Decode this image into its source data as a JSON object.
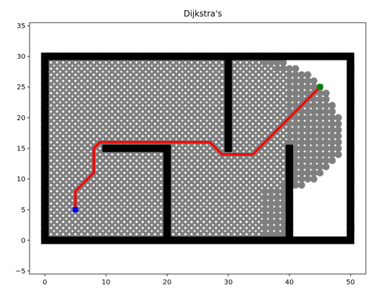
{
  "chart_data": {
    "type": "scatter",
    "title": "Dijkstra's",
    "xlabel": "",
    "ylabel": "",
    "xlim": [
      -2.5,
      52.5
    ],
    "ylim": [
      -5.5,
      35.5
    ],
    "xticks": [
      0,
      10,
      20,
      30,
      40,
      50
    ],
    "yticks": [
      -5,
      0,
      5,
      10,
      15,
      20,
      25,
      30,
      35
    ],
    "grid": false,
    "legend": "none",
    "colors": {
      "obstacle": "#000000",
      "visited": "#7f7f7f",
      "frontier": "#ffffff",
      "path": "#ff0000",
      "start": "#0000ff",
      "goal": "#008000"
    },
    "obstacles": {
      "segments": [
        {
          "from": [
            0,
            0
          ],
          "to": [
            50,
            0
          ]
        },
        {
          "from": [
            50,
            0
          ],
          "to": [
            50,
            30
          ]
        },
        {
          "from": [
            50,
            30
          ],
          "to": [
            0,
            30
          ]
        },
        {
          "from": [
            0,
            30
          ],
          "to": [
            0,
            0
          ]
        },
        {
          "from": [
            10,
            15
          ],
          "to": [
            20,
            15
          ]
        },
        {
          "from": [
            20,
            15
          ],
          "to": [
            20,
            0
          ]
        },
        {
          "from": [
            30,
            15
          ],
          "to": [
            30,
            30
          ]
        },
        {
          "from": [
            40,
            0
          ],
          "to": [
            40,
            15
          ]
        }
      ]
    },
    "visited_region": {
      "x_range": [
        1,
        49
      ],
      "y_range": [
        1,
        29
      ],
      "row_extents": [
        {
          "y": 29,
          "x_max": 39
        },
        {
          "y": 28,
          "x_max": 41
        },
        {
          "y": 27,
          "x_max": 43
        },
        {
          "y": 26,
          "x_max": 44
        },
        {
          "y": 25,
          "x_max": 45
        },
        {
          "y": 24,
          "x_max": 46
        },
        {
          "y": 23,
          "x_max": 46
        },
        {
          "y": 22,
          "x_max": 47
        },
        {
          "y": 21,
          "x_max": 47
        },
        {
          "y": 20,
          "x_max": 48
        },
        {
          "y": 19,
          "x_max": 48
        },
        {
          "y": 18,
          "x_max": 48
        },
        {
          "y": 17,
          "x_max": 48
        },
        {
          "y": 16,
          "x_max": 48
        },
        {
          "y": 15,
          "x_max": 48
        },
        {
          "y": 14,
          "x_max": 48
        },
        {
          "y": 13,
          "x_max": 47
        },
        {
          "y": 12,
          "x_max": 46
        },
        {
          "y": 11,
          "x_max": 45
        },
        {
          "y": 10,
          "x_max": 44
        },
        {
          "y": 9,
          "x_max": 42
        }
      ]
    },
    "path": {
      "x": [
        5,
        5,
        8,
        8,
        9,
        27,
        29,
        34,
        45
      ],
      "y": [
        5,
        8,
        11,
        15,
        16,
        16,
        14,
        14,
        25
      ]
    },
    "start": [
      5,
      5
    ],
    "goal": [
      45,
      25
    ]
  }
}
